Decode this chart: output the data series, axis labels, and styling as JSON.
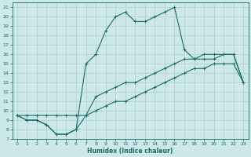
{
  "xlabel": "Humidex (Indice chaleur)",
  "xlim": [
    -0.5,
    23.5
  ],
  "ylim": [
    7,
    21.5
  ],
  "xticks": [
    0,
    1,
    2,
    3,
    4,
    5,
    6,
    7,
    8,
    9,
    10,
    11,
    12,
    13,
    14,
    15,
    16,
    17,
    18,
    19,
    20,
    21,
    22,
    23
  ],
  "yticks": [
    7,
    8,
    9,
    10,
    11,
    12,
    13,
    14,
    15,
    16,
    17,
    18,
    19,
    20,
    21
  ],
  "background_color": "#cce8e8",
  "grid_color": "#b0cccc",
  "line_color": "#1a6b6b",
  "line1_x": [
    0,
    1,
    2,
    3,
    4,
    5,
    6,
    7,
    8,
    9,
    10,
    11,
    12,
    13,
    14,
    15,
    16,
    17,
    18,
    19,
    20,
    21,
    22,
    23
  ],
  "line1_y": [
    9.5,
    9.5,
    9.5,
    9.5,
    9.5,
    9.5,
    9.5,
    9.5,
    10.0,
    10.5,
    11.0,
    11.0,
    11.5,
    12.0,
    12.5,
    13.0,
    13.5,
    14.0,
    14.5,
    14.5,
    15.0,
    15.0,
    15.0,
    13.0
  ],
  "line2_x": [
    0,
    1,
    2,
    3,
    4,
    5,
    6,
    7,
    8,
    9,
    10,
    11,
    12,
    13,
    14,
    15,
    16,
    17,
    18,
    19,
    20,
    21,
    22,
    23
  ],
  "line2_y": [
    9.5,
    9.0,
    9.0,
    8.5,
    7.5,
    7.5,
    8.0,
    9.5,
    11.5,
    12.0,
    12.5,
    13.0,
    13.0,
    13.5,
    14.0,
    14.5,
    15.0,
    15.5,
    15.5,
    15.5,
    15.5,
    16.0,
    16.0,
    13.0
  ],
  "line3_x": [
    0,
    1,
    2,
    3,
    4,
    5,
    6,
    7,
    8,
    9,
    10,
    11,
    12,
    13,
    14,
    15,
    16,
    17,
    18,
    19,
    20,
    21,
    22,
    23
  ],
  "line3_y": [
    9.5,
    9.0,
    9.0,
    8.5,
    7.5,
    7.5,
    8.0,
    15.0,
    16.0,
    18.5,
    20.0,
    20.5,
    19.5,
    19.5,
    20.0,
    20.5,
    21.0,
    16.5,
    15.5,
    16.0,
    16.0,
    16.0,
    16.0,
    13.0
  ]
}
